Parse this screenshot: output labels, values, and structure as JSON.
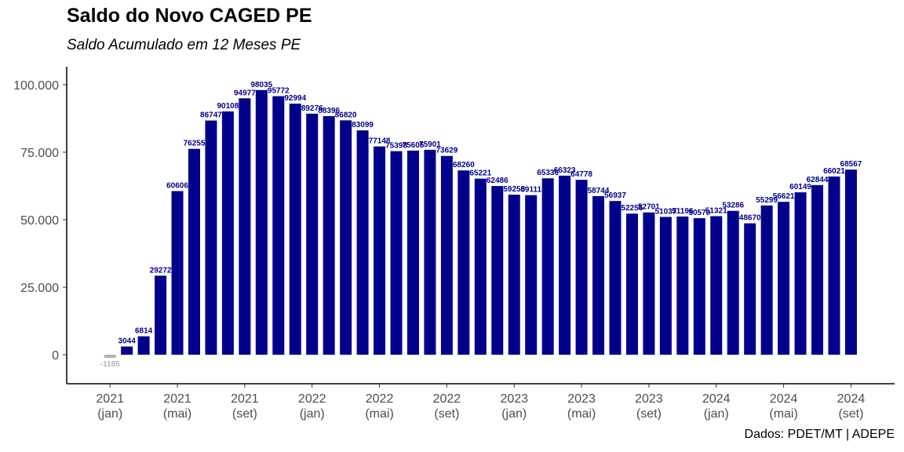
{
  "title": "Saldo do Novo CAGED PE",
  "subtitle": "Saldo Acumulado em 12 Meses PE",
  "caption": "Dados: PDET/MT | ADEPE",
  "chart_data": {
    "type": "bar",
    "ylim": [
      -10000,
      105000
    ],
    "yticks": [
      0,
      25000,
      50000,
      75000,
      100000
    ],
    "ytick_labels": [
      "0",
      "25.000",
      "50.000",
      "75.000",
      "100.000"
    ],
    "values": [
      -1185,
      3044,
      6814,
      29272,
      60606,
      76255,
      86747,
      90108,
      94977,
      98035,
      95772,
      92994,
      89276,
      88396,
      86820,
      83099,
      77148,
      75398,
      75605,
      75901,
      73629,
      68260,
      65221,
      62486,
      59258,
      59111,
      65336,
      66323,
      64778,
      58744,
      56937,
      52255,
      52701,
      51037,
      51196,
      50570,
      51321,
      53286,
      48670,
      55299,
      56621,
      60149,
      62844,
      66021,
      68567
    ],
    "data_labels": [
      "-1185",
      "3044",
      "6814",
      "29272",
      "60606",
      "76255",
      "86747",
      "90108",
      "94977",
      "98035",
      "95772",
      "92994",
      "89276",
      "88396",
      "86820",
      "83099",
      "77148",
      "75398",
      "75605",
      "75901",
      "73629",
      "68260",
      "65221",
      "62486",
      "59258",
      "59111",
      "65336",
      "66323",
      "64778",
      "58744",
      "56937",
      "52255",
      "52701",
      "51037",
      "51196",
      "50570",
      "51321",
      "53286",
      "48670",
      "55299",
      "56621",
      "60149",
      "62844",
      "66021",
      "68567"
    ],
    "xticks": [
      {
        "index": 0,
        "year": "2021",
        "month": "(jan)"
      },
      {
        "index": 4,
        "year": "2021",
        "month": "(mai)"
      },
      {
        "index": 8,
        "year": "2021",
        "month": "(set)"
      },
      {
        "index": 12,
        "year": "2022",
        "month": "(jan)"
      },
      {
        "index": 16,
        "year": "2022",
        "month": "(mai)"
      },
      {
        "index": 20,
        "year": "2022",
        "month": "(set)"
      },
      {
        "index": 24,
        "year": "2023",
        "month": "(jan)"
      },
      {
        "index": 28,
        "year": "2023",
        "month": "(mai)"
      },
      {
        "index": 32,
        "year": "2023",
        "month": "(set)"
      },
      {
        "index": 36,
        "year": "2024",
        "month": "(jan)"
      },
      {
        "index": 40,
        "year": "2024",
        "month": "(mai)"
      },
      {
        "index": 44,
        "year": "2024",
        "month": "(set)"
      }
    ],
    "colors": {
      "positive": "#00008B",
      "negative": "#B3B3B3",
      "axis": "#000000",
      "tick_text": "#4D4D4D"
    },
    "grid": false,
    "legend": "none"
  }
}
